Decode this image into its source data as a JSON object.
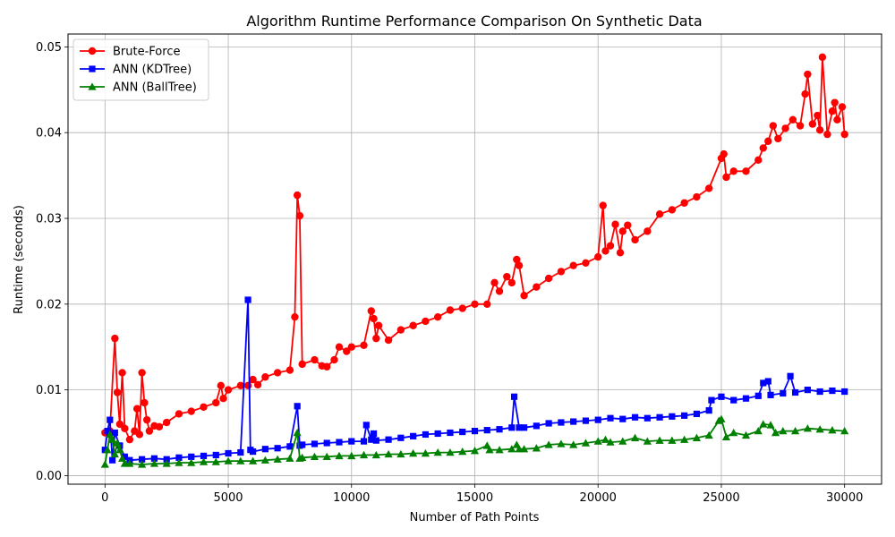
{
  "chart_data": {
    "type": "line",
    "title": "Algorithm Runtime Performance Comparison On Synthetic Data",
    "xlabel": "Number of Path Points",
    "ylabel": "Runtime (seconds)",
    "xlim": [
      -1500,
      31500
    ],
    "ylim": [
      -0.001,
      0.0515
    ],
    "xticks": [
      0,
      5000,
      10000,
      15000,
      20000,
      25000,
      30000
    ],
    "xtick_labels": [
      "0",
      "5000",
      "10000",
      "15000",
      "20000",
      "25000",
      "30000"
    ],
    "yticks": [
      0.0,
      0.01,
      0.02,
      0.03,
      0.04,
      0.05
    ],
    "ytick_labels": [
      "0.00",
      "0.01",
      "0.02",
      "0.03",
      "0.04",
      "0.05"
    ],
    "grid": true,
    "legend_position": "top-left",
    "series": [
      {
        "name": "Brute-Force",
        "color": "#ff0000",
        "marker": "circle",
        "points": [
          [
            0,
            0.005
          ],
          [
            200,
            0.0052
          ],
          [
            400,
            0.016
          ],
          [
            500,
            0.0097
          ],
          [
            600,
            0.006
          ],
          [
            700,
            0.012
          ],
          [
            800,
            0.0055
          ],
          [
            1000,
            0.0042
          ],
          [
            1200,
            0.0052
          ],
          [
            1300,
            0.0078
          ],
          [
            1400,
            0.0048
          ],
          [
            1500,
            0.012
          ],
          [
            1600,
            0.0085
          ],
          [
            1700,
            0.0065
          ],
          [
            1800,
            0.0052
          ],
          [
            2000,
            0.0058
          ],
          [
            2200,
            0.0057
          ],
          [
            2500,
            0.0062
          ],
          [
            3000,
            0.0072
          ],
          [
            3500,
            0.0075
          ],
          [
            4000,
            0.008
          ],
          [
            4500,
            0.0085
          ],
          [
            4700,
            0.0105
          ],
          [
            4800,
            0.009
          ],
          [
            5000,
            0.01
          ],
          [
            5500,
            0.0105
          ],
          [
            5800,
            0.0105
          ],
          [
            6000,
            0.0112
          ],
          [
            6200,
            0.0106
          ],
          [
            6500,
            0.0115
          ],
          [
            7000,
            0.012
          ],
          [
            7500,
            0.0123
          ],
          [
            7700,
            0.0185
          ],
          [
            7800,
            0.0327
          ],
          [
            7900,
            0.0303
          ],
          [
            8000,
            0.013
          ],
          [
            8500,
            0.0135
          ],
          [
            8800,
            0.0128
          ],
          [
            9000,
            0.0127
          ],
          [
            9300,
            0.0135
          ],
          [
            9500,
            0.015
          ],
          [
            9800,
            0.0145
          ],
          [
            10000,
            0.015
          ],
          [
            10500,
            0.0152
          ],
          [
            10800,
            0.0192
          ],
          [
            10900,
            0.0183
          ],
          [
            11000,
            0.016
          ],
          [
            11100,
            0.0175
          ],
          [
            11500,
            0.0158
          ],
          [
            12000,
            0.017
          ],
          [
            12500,
            0.0175
          ],
          [
            13000,
            0.018
          ],
          [
            13500,
            0.0185
          ],
          [
            14000,
            0.0193
          ],
          [
            14500,
            0.0195
          ],
          [
            15000,
            0.02
          ],
          [
            15500,
            0.02
          ],
          [
            15800,
            0.0225
          ],
          [
            16000,
            0.0215
          ],
          [
            16300,
            0.0232
          ],
          [
            16500,
            0.0225
          ],
          [
            16700,
            0.0252
          ],
          [
            16800,
            0.0245
          ],
          [
            17000,
            0.021
          ],
          [
            17500,
            0.022
          ],
          [
            18000,
            0.023
          ],
          [
            18500,
            0.0238
          ],
          [
            19000,
            0.0245
          ],
          [
            19500,
            0.0248
          ],
          [
            20000,
            0.0255
          ],
          [
            20200,
            0.0315
          ],
          [
            20300,
            0.0262
          ],
          [
            20500,
            0.0268
          ],
          [
            20700,
            0.0293
          ],
          [
            20900,
            0.026
          ],
          [
            21000,
            0.0285
          ],
          [
            21200,
            0.0292
          ],
          [
            21500,
            0.0275
          ],
          [
            22000,
            0.0285
          ],
          [
            22500,
            0.0305
          ],
          [
            23000,
            0.031
          ],
          [
            23500,
            0.0318
          ],
          [
            24000,
            0.0325
          ],
          [
            24500,
            0.0335
          ],
          [
            25000,
            0.037
          ],
          [
            25100,
            0.0375
          ],
          [
            25200,
            0.0348
          ],
          [
            25500,
            0.0355
          ],
          [
            26000,
            0.0355
          ],
          [
            26500,
            0.0368
          ],
          [
            26700,
            0.0382
          ],
          [
            26900,
            0.039
          ],
          [
            27100,
            0.0408
          ],
          [
            27300,
            0.0393
          ],
          [
            27600,
            0.0405
          ],
          [
            27900,
            0.0415
          ],
          [
            28200,
            0.0408
          ],
          [
            28400,
            0.0445
          ],
          [
            28500,
            0.0468
          ],
          [
            28700,
            0.041
          ],
          [
            28900,
            0.042
          ],
          [
            29000,
            0.0403
          ],
          [
            29100,
            0.0488
          ],
          [
            29300,
            0.0398
          ],
          [
            29500,
            0.0425
          ],
          [
            29600,
            0.0435
          ],
          [
            29700,
            0.0415
          ],
          [
            29900,
            0.043
          ],
          [
            30000,
            0.0398
          ]
        ]
      },
      {
        "name": "ANN (KDTree)",
        "color": "#0000ff",
        "marker": "square",
        "points": [
          [
            0,
            0.003
          ],
          [
            100,
            0.0052
          ],
          [
            200,
            0.0065
          ],
          [
            300,
            0.0018
          ],
          [
            400,
            0.005
          ],
          [
            600,
            0.0035
          ],
          [
            800,
            0.0022
          ],
          [
            1000,
            0.0018
          ],
          [
            1500,
            0.0019
          ],
          [
            2000,
            0.002
          ],
          [
            2500,
            0.0019
          ],
          [
            3000,
            0.0021
          ],
          [
            3500,
            0.0022
          ],
          [
            4000,
            0.0023
          ],
          [
            4500,
            0.0024
          ],
          [
            5000,
            0.0026
          ],
          [
            5500,
            0.0027
          ],
          [
            5800,
            0.0205
          ],
          [
            5900,
            0.003
          ],
          [
            6000,
            0.0028
          ],
          [
            6500,
            0.0031
          ],
          [
            7000,
            0.0032
          ],
          [
            7500,
            0.0034
          ],
          [
            7800,
            0.0081
          ],
          [
            7900,
            0.0035
          ],
          [
            8000,
            0.0036
          ],
          [
            8500,
            0.0037
          ],
          [
            9000,
            0.0038
          ],
          [
            9500,
            0.0039
          ],
          [
            10000,
            0.004
          ],
          [
            10500,
            0.004
          ],
          [
            10600,
            0.0059
          ],
          [
            10800,
            0.0042
          ],
          [
            10900,
            0.0049
          ],
          [
            11000,
            0.0041
          ],
          [
            11500,
            0.0042
          ],
          [
            12000,
            0.0044
          ],
          [
            12500,
            0.0046
          ],
          [
            13000,
            0.0048
          ],
          [
            13500,
            0.0049
          ],
          [
            14000,
            0.005
          ],
          [
            14500,
            0.0051
          ],
          [
            15000,
            0.0052
          ],
          [
            15500,
            0.0053
          ],
          [
            16000,
            0.0054
          ],
          [
            16500,
            0.0056
          ],
          [
            16600,
            0.0092
          ],
          [
            16800,
            0.0056
          ],
          [
            17000,
            0.0056
          ],
          [
            17500,
            0.0058
          ],
          [
            18000,
            0.0061
          ],
          [
            18500,
            0.0062
          ],
          [
            19000,
            0.0063
          ],
          [
            19500,
            0.0064
          ],
          [
            20000,
            0.0065
          ],
          [
            20500,
            0.0067
          ],
          [
            21000,
            0.0066
          ],
          [
            21500,
            0.0068
          ],
          [
            22000,
            0.0067
          ],
          [
            22500,
            0.0068
          ],
          [
            23000,
            0.0069
          ],
          [
            23500,
            0.007
          ],
          [
            24000,
            0.0072
          ],
          [
            24500,
            0.0076
          ],
          [
            24600,
            0.0088
          ],
          [
            25000,
            0.0092
          ],
          [
            25500,
            0.0088
          ],
          [
            26000,
            0.009
          ],
          [
            26500,
            0.0093
          ],
          [
            26700,
            0.0108
          ],
          [
            26900,
            0.011
          ],
          [
            27000,
            0.0094
          ],
          [
            27500,
            0.0096
          ],
          [
            27800,
            0.0116
          ],
          [
            28000,
            0.0097
          ],
          [
            28500,
            0.01
          ],
          [
            29000,
            0.0098
          ],
          [
            29500,
            0.0099
          ],
          [
            30000,
            0.0098
          ]
        ]
      },
      {
        "name": "ANN (BallTree)",
        "color": "#008000",
        "marker": "triangle",
        "points": [
          [
            0,
            0.0013
          ],
          [
            100,
            0.003
          ],
          [
            200,
            0.0048
          ],
          [
            300,
            0.0042
          ],
          [
            400,
            0.0025
          ],
          [
            500,
            0.0038
          ],
          [
            600,
            0.003
          ],
          [
            700,
            0.002
          ],
          [
            800,
            0.0014
          ],
          [
            1000,
            0.0014
          ],
          [
            1500,
            0.0013
          ],
          [
            2000,
            0.0014
          ],
          [
            2500,
            0.0014
          ],
          [
            3000,
            0.0015
          ],
          [
            3500,
            0.0015
          ],
          [
            4000,
            0.0016
          ],
          [
            4500,
            0.0016
          ],
          [
            5000,
            0.0017
          ],
          [
            5500,
            0.0017
          ],
          [
            6000,
            0.0017
          ],
          [
            6500,
            0.0018
          ],
          [
            7000,
            0.0019
          ],
          [
            7500,
            0.002
          ],
          [
            7800,
            0.005
          ],
          [
            7900,
            0.002
          ],
          [
            8000,
            0.0021
          ],
          [
            8500,
            0.0022
          ],
          [
            9000,
            0.0022
          ],
          [
            9500,
            0.0023
          ],
          [
            10000,
            0.0023
          ],
          [
            10500,
            0.0024
          ],
          [
            11000,
            0.0024
          ],
          [
            11500,
            0.0025
          ],
          [
            12000,
            0.0025
          ],
          [
            12500,
            0.0026
          ],
          [
            13000,
            0.0026
          ],
          [
            13500,
            0.0027
          ],
          [
            14000,
            0.0027
          ],
          [
            14500,
            0.0028
          ],
          [
            15000,
            0.0029
          ],
          [
            15500,
            0.0035
          ],
          [
            15600,
            0.003
          ],
          [
            16000,
            0.003
          ],
          [
            16500,
            0.0031
          ],
          [
            16700,
            0.0036
          ],
          [
            16800,
            0.0031
          ],
          [
            17000,
            0.0031
          ],
          [
            17500,
            0.0032
          ],
          [
            18000,
            0.0036
          ],
          [
            18500,
            0.0037
          ],
          [
            19000,
            0.0036
          ],
          [
            19500,
            0.0038
          ],
          [
            20000,
            0.004
          ],
          [
            20300,
            0.0042
          ],
          [
            20500,
            0.0039
          ],
          [
            21000,
            0.004
          ],
          [
            21500,
            0.0044
          ],
          [
            22000,
            0.004
          ],
          [
            22500,
            0.0041
          ],
          [
            23000,
            0.0041
          ],
          [
            23500,
            0.0042
          ],
          [
            24000,
            0.0044
          ],
          [
            24500,
            0.0047
          ],
          [
            24900,
            0.0064
          ],
          [
            25000,
            0.0066
          ],
          [
            25200,
            0.0045
          ],
          [
            25500,
            0.005
          ],
          [
            26000,
            0.0047
          ],
          [
            26500,
            0.0052
          ],
          [
            26700,
            0.006
          ],
          [
            27000,
            0.0059
          ],
          [
            27200,
            0.005
          ],
          [
            27500,
            0.0052
          ],
          [
            28000,
            0.0052
          ],
          [
            28500,
            0.0055
          ],
          [
            29000,
            0.0054
          ],
          [
            29500,
            0.0053
          ],
          [
            30000,
            0.0052
          ]
        ]
      }
    ]
  }
}
